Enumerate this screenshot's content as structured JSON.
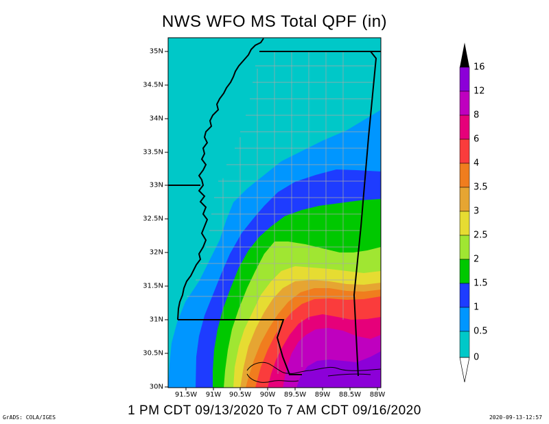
{
  "title": "NWS WFO MS Total QPF (in)",
  "subtitle": "1 PM CDT 09/13/2020 To 7 AM CDT 09/16/2020",
  "footer_left": "GrADS: COLA/IGES",
  "footer_right": "2020-09-13-12:57",
  "lat_labels": [
    "35N",
    "34.5N",
    "34N",
    "33.5N",
    "33N",
    "32.5N",
    "32N",
    "31.5N",
    "31N",
    "30.5N",
    "30N"
  ],
  "lon_labels": [
    "91.5W",
    "91W",
    "90.5W",
    "90W",
    "89.5W",
    "89W",
    "88.5W",
    "88W"
  ],
  "legend": {
    "labels": [
      "16",
      "12",
      "8",
      "6",
      "4",
      "3.5",
      "3",
      "2.5",
      "2",
      "1.5",
      "1",
      "0.5",
      "0"
    ],
    "colors": [
      "#8c00d8",
      "#bf00bf",
      "#e6007a",
      "#fa3c3c",
      "#f07d1e",
      "#e6a532",
      "#e6dc32",
      "#a0e632",
      "#00c800",
      "#1e3cff",
      "#0096ff",
      "#00c8c8",
      "#ffffff"
    ]
  }
}
